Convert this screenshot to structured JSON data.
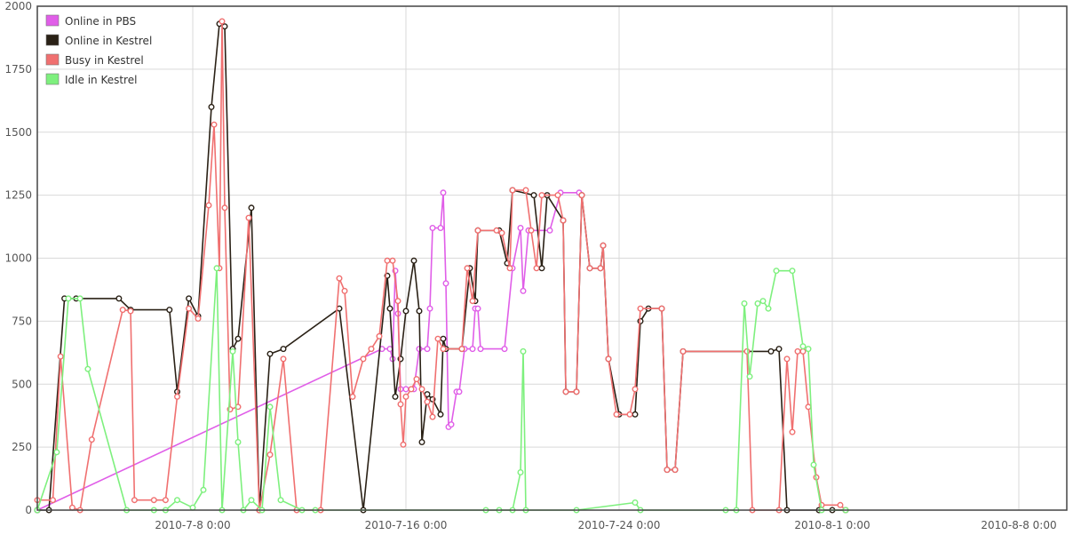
{
  "chart_data": {
    "type": "line",
    "x_kind": "day-of-2010",
    "xlim": [
      185,
      225
    ],
    "ylim": [
      0,
      2000
    ],
    "yticks": [
      0,
      250,
      500,
      750,
      1000,
      1250,
      1500,
      1750,
      2000
    ],
    "xticks": [
      {
        "x": 189,
        "label": "2010-7-8 0:00"
      },
      {
        "x": 197,
        "label": "2010-7-16 0:00"
      },
      {
        "x": 205,
        "label": "2010-7-24 0:00"
      },
      {
        "x": 213,
        "label": "2010-8-1 0:00"
      },
      {
        "x": 220,
        "label": "2010-8-8 0:00"
      }
    ],
    "grid": true,
    "legend_position": "top-left",
    "series": [
      {
        "name": "Online in PBS",
        "color": "#e05ee8",
        "points": [
          [
            185.0,
            0
          ],
          [
            196.1,
            640
          ],
          [
            196.4,
            640
          ],
          [
            196.5,
            600
          ],
          [
            196.6,
            950
          ],
          [
            196.7,
            780
          ],
          [
            196.8,
            480
          ],
          [
            197.0,
            480
          ],
          [
            197.3,
            480
          ],
          [
            197.5,
            640
          ],
          [
            197.8,
            640
          ],
          [
            197.9,
            800
          ],
          [
            198.0,
            1120
          ],
          [
            198.3,
            1120
          ],
          [
            198.4,
            1260
          ],
          [
            198.5,
            900
          ],
          [
            198.6,
            330
          ],
          [
            198.7,
            340
          ],
          [
            198.9,
            470
          ],
          [
            199.0,
            470
          ],
          [
            199.2,
            640
          ],
          [
            199.5,
            640
          ],
          [
            199.6,
            800
          ],
          [
            199.7,
            800
          ],
          [
            199.8,
            640
          ],
          [
            200.7,
            640
          ],
          [
            201.0,
            960
          ],
          [
            201.3,
            1120
          ],
          [
            201.4,
            870
          ],
          [
            201.6,
            1110
          ],
          [
            202.4,
            1110
          ],
          [
            202.8,
            1260
          ],
          [
            203.5,
            1260
          ]
        ]
      },
      {
        "name": "Online in Kestrel",
        "color": "#2a2116",
        "points": [
          [
            185.0,
            0
          ],
          [
            185.3,
            0
          ],
          [
            185.7,
            840
          ],
          [
            186.0,
            840
          ],
          [
            187.1,
            840
          ],
          [
            187.4,
            795
          ],
          [
            188.4,
            795
          ],
          [
            188.6,
            470
          ],
          [
            188.9,
            840
          ],
          [
            189.2,
            770
          ],
          [
            189.7,
            1600
          ],
          [
            190.0,
            1930
          ],
          [
            190.2,
            1920
          ],
          [
            190.5,
            640
          ],
          [
            190.7,
            680
          ],
          [
            191.2,
            1200
          ],
          [
            191.5,
            0
          ],
          [
            191.9,
            620
          ],
          [
            192.4,
            640
          ],
          [
            194.5,
            800
          ],
          [
            195.4,
            0
          ],
          [
            196.3,
            930
          ],
          [
            196.4,
            800
          ],
          [
            196.6,
            450
          ],
          [
            196.8,
            600
          ],
          [
            197.0,
            790
          ],
          [
            197.3,
            990
          ],
          [
            197.5,
            790
          ],
          [
            197.6,
            270
          ],
          [
            197.8,
            460
          ],
          [
            198.0,
            440
          ],
          [
            198.3,
            380
          ],
          [
            198.4,
            680
          ],
          [
            198.5,
            640
          ],
          [
            199.1,
            640
          ],
          [
            199.4,
            960
          ],
          [
            199.6,
            830
          ],
          [
            199.7,
            1110
          ],
          [
            200.5,
            1110
          ],
          [
            200.8,
            980
          ],
          [
            201.0,
            1270
          ],
          [
            201.8,
            1250
          ],
          [
            202.1,
            960
          ],
          [
            202.3,
            1250
          ],
          [
            202.9,
            1150
          ],
          [
            203.0,
            470
          ],
          [
            203.4,
            470
          ],
          [
            203.6,
            1250
          ],
          [
            203.9,
            960
          ],
          [
            204.3,
            960
          ],
          [
            204.4,
            1050
          ],
          [
            204.6,
            600
          ],
          [
            205.0,
            380
          ],
          [
            205.6,
            380
          ],
          [
            205.8,
            750
          ],
          [
            206.1,
            800
          ],
          [
            206.6,
            800
          ],
          [
            206.8,
            160
          ],
          [
            207.1,
            160
          ],
          [
            207.4,
            630
          ],
          [
            210.7,
            630
          ],
          [
            211.0,
            640
          ],
          [
            211.3,
            0
          ],
          [
            212.5,
            0
          ],
          [
            213.0,
            0
          ],
          [
            213.5,
            0
          ]
        ]
      },
      {
        "name": "Busy in Kestrel",
        "color": "#f07070",
        "points": [
          [
            185.0,
            40
          ],
          [
            185.4,
            40
          ],
          [
            185.6,
            610
          ],
          [
            185.9,
            10
          ],
          [
            186.1,
            0
          ],
          [
            186.4,
            280
          ],
          [
            187.2,
            795
          ],
          [
            187.4,
            790
          ],
          [
            187.5,
            40
          ],
          [
            188.0,
            40
          ],
          [
            188.3,
            40
          ],
          [
            188.6,
            450
          ],
          [
            188.9,
            800
          ],
          [
            189.2,
            760
          ],
          [
            189.6,
            1210
          ],
          [
            189.8,
            1530
          ],
          [
            190.0,
            960
          ],
          [
            190.1,
            1940
          ],
          [
            190.2,
            1200
          ],
          [
            190.4,
            400
          ],
          [
            190.7,
            410
          ],
          [
            191.1,
            1160
          ],
          [
            191.5,
            0
          ],
          [
            191.9,
            220
          ],
          [
            192.4,
            600
          ],
          [
            192.9,
            0
          ],
          [
            193.8,
            0
          ],
          [
            194.5,
            920
          ],
          [
            194.7,
            870
          ],
          [
            195.0,
            450
          ],
          [
            195.4,
            600
          ],
          [
            195.7,
            640
          ],
          [
            196.0,
            690
          ],
          [
            196.3,
            990
          ],
          [
            196.5,
            990
          ],
          [
            196.7,
            830
          ],
          [
            196.8,
            420
          ],
          [
            196.9,
            260
          ],
          [
            197.0,
            450
          ],
          [
            197.2,
            480
          ],
          [
            197.4,
            520
          ],
          [
            197.6,
            480
          ],
          [
            197.8,
            430
          ],
          [
            198.0,
            370
          ],
          [
            198.2,
            680
          ],
          [
            198.4,
            640
          ],
          [
            199.1,
            640
          ],
          [
            199.3,
            960
          ],
          [
            199.5,
            830
          ],
          [
            199.7,
            1110
          ],
          [
            200.4,
            1110
          ],
          [
            200.6,
            1100
          ],
          [
            200.9,
            960
          ],
          [
            201.0,
            1270
          ],
          [
            201.5,
            1270
          ],
          [
            201.7,
            1110
          ],
          [
            201.9,
            960
          ],
          [
            202.1,
            1250
          ],
          [
            202.7,
            1250
          ],
          [
            202.9,
            1150
          ],
          [
            203.0,
            470
          ],
          [
            203.4,
            470
          ],
          [
            203.6,
            1250
          ],
          [
            203.9,
            960
          ],
          [
            204.3,
            960
          ],
          [
            204.4,
            1050
          ],
          [
            204.6,
            600
          ],
          [
            204.9,
            380
          ],
          [
            205.4,
            380
          ],
          [
            205.6,
            480
          ],
          [
            205.8,
            800
          ],
          [
            206.6,
            800
          ],
          [
            206.8,
            160
          ],
          [
            207.1,
            160
          ],
          [
            207.4,
            630
          ],
          [
            209.8,
            630
          ],
          [
            210.0,
            0
          ],
          [
            211.0,
            0
          ],
          [
            211.3,
            600
          ],
          [
            211.5,
            310
          ],
          [
            211.7,
            630
          ],
          [
            211.9,
            630
          ],
          [
            212.1,
            410
          ],
          [
            212.4,
            130
          ],
          [
            212.6,
            20
          ],
          [
            213.3,
            20
          ],
          [
            213.5,
            0
          ]
        ]
      },
      {
        "name": "Idle in Kestrel",
        "color": "#7ef07e",
        "points": [
          [
            185.0,
            0
          ],
          [
            185.5,
            230
          ],
          [
            185.8,
            840
          ],
          [
            186.1,
            840
          ],
          [
            186.3,
            560
          ],
          [
            187.3,
            0
          ],
          [
            188.0,
            0
          ],
          [
            188.3,
            0
          ],
          [
            188.6,
            40
          ],
          [
            189.0,
            10
          ],
          [
            189.4,
            80
          ],
          [
            189.9,
            960
          ],
          [
            190.1,
            0
          ],
          [
            190.5,
            630
          ],
          [
            190.7,
            270
          ],
          [
            190.9,
            0
          ],
          [
            191.2,
            40
          ],
          [
            191.6,
            0
          ],
          [
            191.9,
            410
          ],
          [
            192.3,
            40
          ],
          [
            193.1,
            0
          ],
          [
            193.6,
            0
          ],
          [
            200.0,
            0
          ],
          [
            200.5,
            0
          ],
          [
            201.0,
            0
          ],
          [
            201.3,
            150
          ],
          [
            201.4,
            630
          ],
          [
            201.5,
            0
          ],
          [
            203.4,
            0
          ],
          [
            205.6,
            30
          ],
          [
            205.8,
            0
          ],
          [
            209.0,
            0
          ],
          [
            209.4,
            0
          ],
          [
            209.7,
            820
          ],
          [
            209.9,
            530
          ],
          [
            210.2,
            820
          ],
          [
            210.4,
            830
          ],
          [
            210.6,
            800
          ],
          [
            210.9,
            950
          ],
          [
            211.5,
            950
          ],
          [
            211.9,
            650
          ],
          [
            212.1,
            640
          ],
          [
            212.3,
            180
          ],
          [
            212.6,
            0
          ],
          [
            213.5,
            0
          ]
        ]
      }
    ]
  }
}
